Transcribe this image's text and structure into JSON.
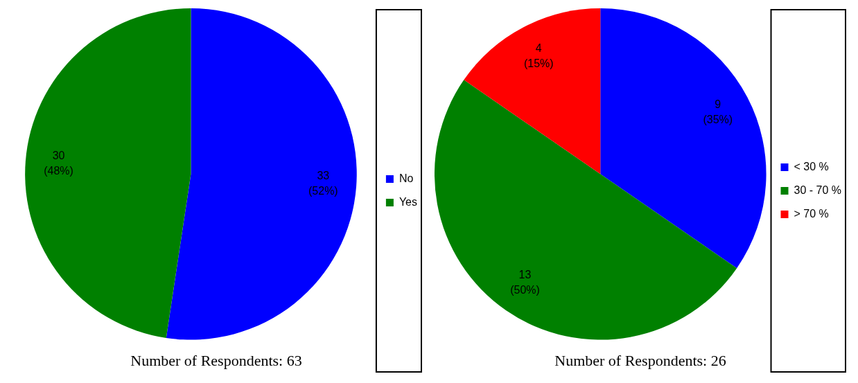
{
  "chart_data": [
    {
      "type": "pie",
      "title": "Number of Respondents: 63",
      "categories": [
        "No",
        "Yes"
      ],
      "values": [
        33,
        30
      ],
      "colors": [
        "#0000ff",
        "#008000"
      ],
      "value_labels": [
        "33\n(52%)",
        "30\n(48%)"
      ],
      "legend": "right"
    },
    {
      "type": "pie",
      "title": "Number of Respondents: 26",
      "categories": [
        "< 30 %",
        "30 - 70 %",
        "> 70 %"
      ],
      "values": [
        9,
        13,
        4
      ],
      "colors": [
        "#0000ff",
        "#008000",
        "#ff0000"
      ],
      "value_labels": [
        "9\n(35%)",
        "13\n(50%)",
        "4\n(15%)"
      ],
      "legend": "right"
    }
  ]
}
